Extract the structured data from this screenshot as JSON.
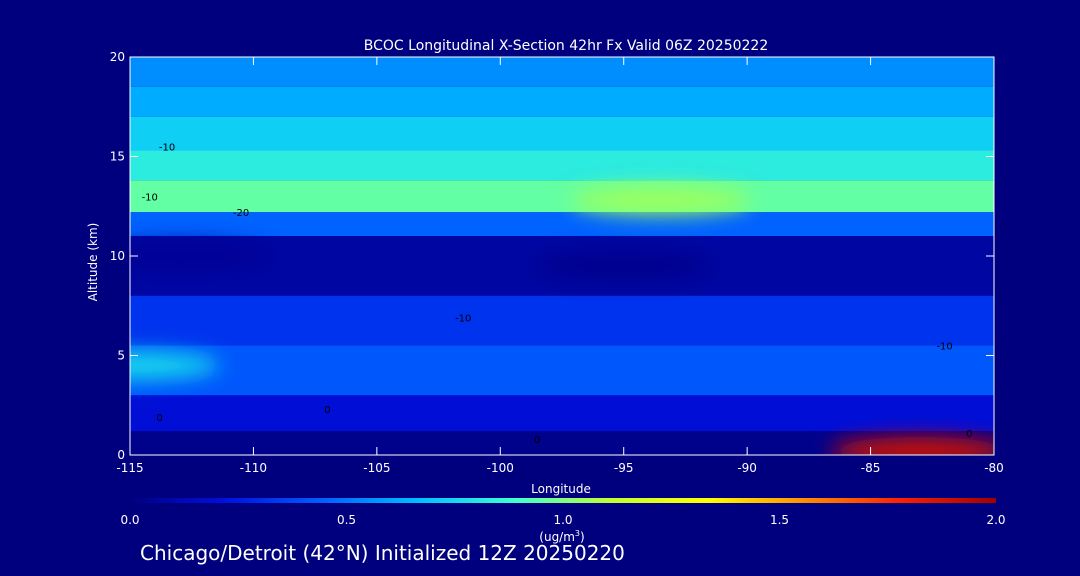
{
  "colors": {
    "background": "#00007f",
    "axis": "#ffffff"
  },
  "footer": "Chicago/Detroit (42°N) Initialized 12Z 20250220",
  "chart_data": {
    "type": "heatmap",
    "title": "BCOC Longitudinal X-Section 42hr  Fx Valid 06Z 20250222",
    "xlabel": "Longitude",
    "ylabel": "Altitude (km)",
    "xlim": [
      -115,
      -80
    ],
    "ylim": [
      0,
      20
    ],
    "xticks": [
      -115,
      -110,
      -105,
      -100,
      -95,
      -90,
      -85,
      -80
    ],
    "xtick_labels": [
      "-115",
      "-110",
      "-105",
      "-100",
      "-95",
      "-90",
      "-85",
      "-80"
    ],
    "yticks": [
      0,
      5,
      10,
      15,
      20
    ],
    "ytick_labels": [
      "0",
      "5",
      "10",
      "15",
      "20"
    ],
    "colorbar": {
      "min": 0.0,
      "max": 2.0,
      "ticks": [
        0.0,
        0.5,
        1.0,
        1.5,
        2.0
      ],
      "tick_labels": [
        "0.0",
        "0.5",
        "1.0",
        "1.5",
        "2.0"
      ],
      "unit_label": "(ug/m",
      "unit_superscript": "3",
      "unit_close": ")",
      "stops": [
        "#00007f",
        "#0010e0",
        "#0060ff",
        "#00c0ff",
        "#40ffd0",
        "#c0ff30",
        "#ffff00",
        "#ff9000",
        "#ff2000",
        "#a00000"
      ]
    },
    "layers": [
      {
        "alt_range": [
          18.5,
          20
        ],
        "value": 0.55
      },
      {
        "alt_range": [
          17,
          18.5
        ],
        "value": 0.62
      },
      {
        "alt_range": [
          15.3,
          17
        ],
        "value": 0.72
      },
      {
        "alt_range": [
          13.8,
          15.3
        ],
        "value": 0.82
      },
      {
        "alt_range": [
          12.2,
          13.8
        ],
        "value": 0.95
      },
      {
        "alt_range": [
          11,
          12.2
        ],
        "value": 0.45
      },
      {
        "alt_range": [
          8,
          11
        ],
        "value": 0.08
      },
      {
        "alt_range": [
          5.5,
          8
        ],
        "value": 0.32
      },
      {
        "alt_range": [
          3,
          5.5
        ],
        "value": 0.42
      },
      {
        "alt_range": [
          1.2,
          3
        ],
        "value": 0.2
      },
      {
        "alt_range": [
          0,
          1.2
        ],
        "value": 0.03
      }
    ],
    "features": [
      {
        "lon": -93.5,
        "alt": 12.8,
        "value": 1.05
      },
      {
        "lon": -95,
        "alt": 9.5,
        "value": 0.03
      },
      {
        "lon": -113,
        "alt": 10,
        "value": 0.05
      },
      {
        "lon": -115,
        "alt": 4.5,
        "value": 0.75
      },
      {
        "lon": -83,
        "alt": 0.2,
        "value": 1.9
      }
    ],
    "contour_labels": [
      {
        "lon": -113.5,
        "alt": 15.3,
        "text": "-10"
      },
      {
        "lon": -114.2,
        "alt": 12.8,
        "text": "-10"
      },
      {
        "lon": -110.5,
        "alt": 12.0,
        "text": "-20"
      },
      {
        "lon": -101.5,
        "alt": 6.7,
        "text": "-10"
      },
      {
        "lon": -82,
        "alt": 5.3,
        "text": "-10"
      },
      {
        "lon": -113.8,
        "alt": 1.7,
        "text": "0"
      },
      {
        "lon": -107,
        "alt": 2.1,
        "text": "0"
      },
      {
        "lon": -98.5,
        "alt": 0.6,
        "text": "0"
      },
      {
        "lon": -81,
        "alt": 0.9,
        "text": "0"
      }
    ]
  }
}
